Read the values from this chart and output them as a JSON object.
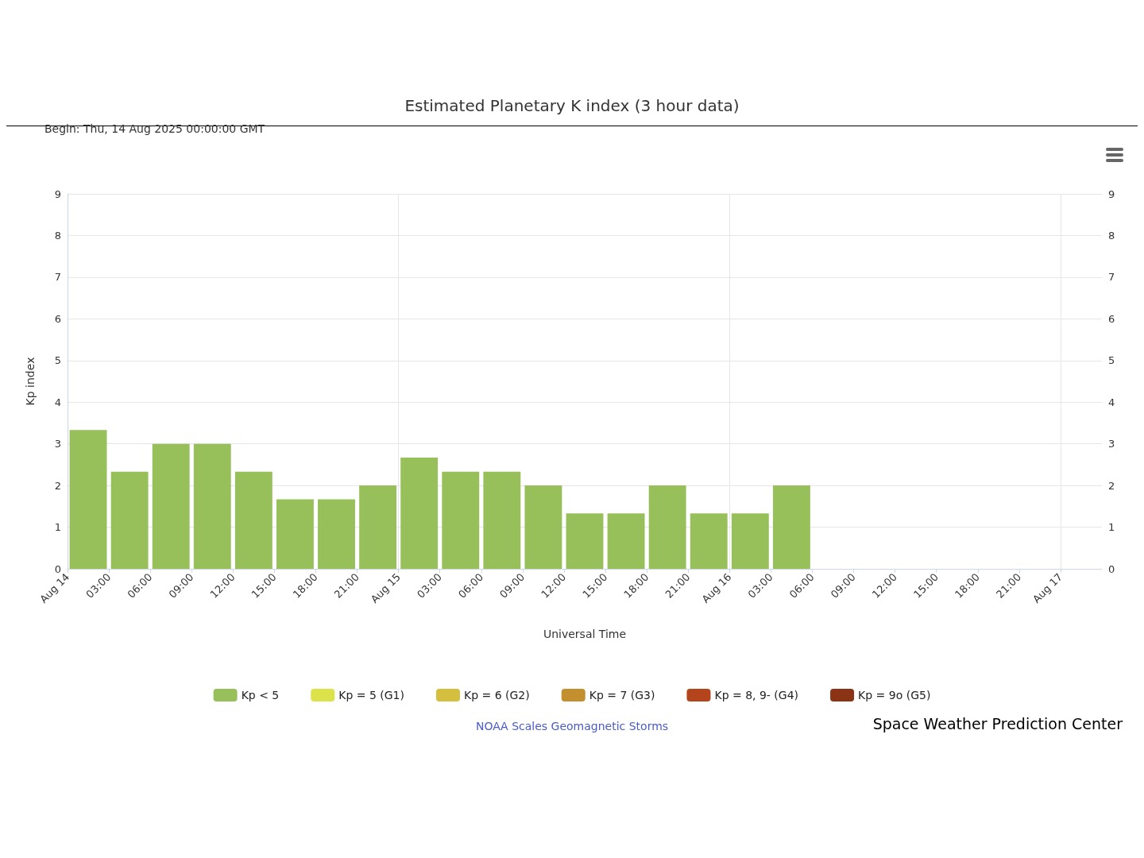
{
  "chart_data": {
    "type": "bar",
    "title": "Estimated Planetary K index (3 hour data)",
    "subtitle": "Begin: Thu, 14 Aug 2025 00:00:00 GMT",
    "xlabel": "Universal Time",
    "ylabel": "Kp index",
    "legend_title": "NOAA Scales Geomagnetic Storms",
    "x": [
      "2025-08-14T01:30",
      "2025-08-14T04:30",
      "2025-08-14T07:30",
      "2025-08-14T10:30",
      "2025-08-14T13:30",
      "2025-08-14T16:30",
      "2025-08-14T19:30",
      "2025-08-14T22:30",
      "2025-08-15T01:30",
      "2025-08-15T04:30",
      "2025-08-15T07:30",
      "2025-08-15T10:30",
      "2025-08-15T13:30",
      "2025-08-15T16:30",
      "2025-08-15T19:30",
      "2025-08-15T22:30",
      "2025-08-16T01:30",
      "2025-08-16T04:30"
    ],
    "series": [
      {
        "name": "Kp < 5",
        "color": "#97bf5a",
        "values": [
          3.33,
          2.33,
          3,
          3,
          2.33,
          1.67,
          1.67,
          2,
          2.67,
          2.33,
          2.33,
          2,
          1.33,
          1.33,
          2,
          1.33,
          1.33,
          2
        ]
      },
      {
        "name": "Kp = 5 (G1)",
        "color": "#dce34a",
        "values": [
          null,
          null,
          null,
          null,
          null,
          null,
          null,
          null,
          null,
          null,
          null,
          null,
          null,
          null,
          null,
          null,
          null,
          null
        ]
      },
      {
        "name": "Kp = 6 (G2)",
        "color": "#d4bf3f",
        "values": [
          null,
          null,
          null,
          null,
          null,
          null,
          null,
          null,
          null,
          null,
          null,
          null,
          null,
          null,
          null,
          null,
          null,
          null
        ]
      },
      {
        "name": "Kp = 7 (G3)",
        "color": "#c48f2f",
        "values": [
          null,
          null,
          null,
          null,
          null,
          null,
          null,
          null,
          null,
          null,
          null,
          null,
          null,
          null,
          null,
          null,
          null,
          null
        ]
      },
      {
        "name": "Kp = 8, 9- (G4)",
        "color": "#b4441b",
        "values": [
          null,
          null,
          null,
          null,
          null,
          null,
          null,
          null,
          null,
          null,
          null,
          null,
          null,
          null,
          null,
          null,
          null,
          null
        ]
      },
      {
        "name": "Kp = 9o (G5)",
        "color": "#8b3415",
        "values": [
          null,
          null,
          null,
          null,
          null,
          null,
          null,
          null,
          null,
          null,
          null,
          null,
          null,
          null,
          null,
          null,
          null,
          null
        ]
      }
    ],
    "xlim": [
      "2025-08-14T00:00",
      "2025-08-17T03:00"
    ],
    "xticks": [
      {
        "value": "2025-08-14T00:00",
        "label": "Aug 14"
      },
      {
        "value": "2025-08-14T03:00",
        "label": "03:00"
      },
      {
        "value": "2025-08-14T06:00",
        "label": "06:00"
      },
      {
        "value": "2025-08-14T09:00",
        "label": "09:00"
      },
      {
        "value": "2025-08-14T12:00",
        "label": "12:00"
      },
      {
        "value": "2025-08-14T15:00",
        "label": "15:00"
      },
      {
        "value": "2025-08-14T18:00",
        "label": "18:00"
      },
      {
        "value": "2025-08-14T21:00",
        "label": "21:00"
      },
      {
        "value": "2025-08-15T00:00",
        "label": "Aug 15"
      },
      {
        "value": "2025-08-15T03:00",
        "label": "03:00"
      },
      {
        "value": "2025-08-15T06:00",
        "label": "06:00"
      },
      {
        "value": "2025-08-15T09:00",
        "label": "09:00"
      },
      {
        "value": "2025-08-15T12:00",
        "label": "12:00"
      },
      {
        "value": "2025-08-15T15:00",
        "label": "15:00"
      },
      {
        "value": "2025-08-15T18:00",
        "label": "18:00"
      },
      {
        "value": "2025-08-15T21:00",
        "label": "21:00"
      },
      {
        "value": "2025-08-16T00:00",
        "label": "Aug 16"
      },
      {
        "value": "2025-08-16T03:00",
        "label": "03:00"
      },
      {
        "value": "2025-08-16T06:00",
        "label": "06:00"
      },
      {
        "value": "2025-08-16T09:00",
        "label": "09:00"
      },
      {
        "value": "2025-08-16T12:00",
        "label": "12:00"
      },
      {
        "value": "2025-08-16T15:00",
        "label": "15:00"
      },
      {
        "value": "2025-08-16T18:00",
        "label": "18:00"
      },
      {
        "value": "2025-08-16T21:00",
        "label": "21:00"
      },
      {
        "value": "2025-08-17T00:00",
        "label": "Aug 17"
      }
    ],
    "ylim": [
      0,
      9
    ],
    "yticks": [
      0,
      1,
      2,
      3,
      4,
      5,
      6,
      7,
      8,
      9
    ],
    "y2lim": [
      0,
      9
    ],
    "y2ticks": [
      0,
      1,
      2,
      3,
      4,
      5,
      6,
      7,
      8,
      9
    ],
    "ref_lines": [
      {
        "axis": "x",
        "value": "2025-08-15T00:00",
        "color": "#e6e6e6"
      },
      {
        "axis": "x",
        "value": "2025-08-16T00:00",
        "color": "#e6e6e6"
      },
      {
        "axis": "x",
        "value": "2025-08-17T00:00",
        "color": "#e6e6e6"
      }
    ],
    "grid": "y",
    "legend": "bottom",
    "annotations": [
      "Space Weather Prediction Center"
    ]
  }
}
